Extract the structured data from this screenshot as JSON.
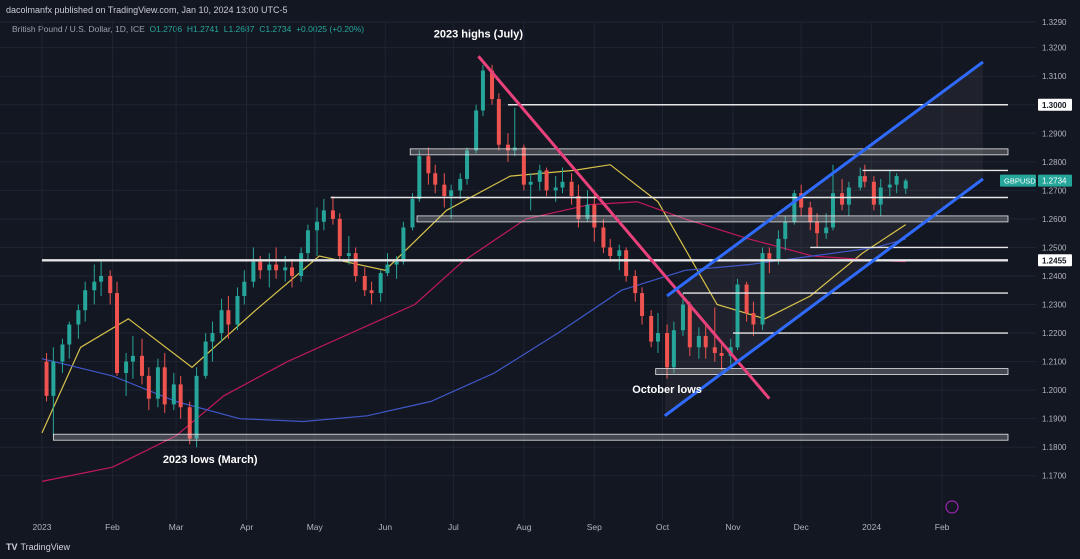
{
  "header": {
    "author": "dacolmanfx published on TradingView.com, Jan 10, 2024 13:00 UTC-5",
    "symbol_line": "British Pound / U.S. Dollar, 1D, ICE",
    "o": "O1.2706",
    "h": "H1.2741",
    "l": "L1.2687",
    "c": "C1.2734",
    "change": "+0.0025 (+0.20%)"
  },
  "footer": {
    "logo": "TV",
    "brand": "TradingView"
  },
  "colors": {
    "background": "#131722",
    "up": "#26a69a",
    "down": "#ef5350",
    "channel": "#2f6bff",
    "trendline": "#e8417b",
    "sma_fast": "#d8c24a",
    "sma_mid": "#c2185b",
    "sma_slow": "#3f57c9",
    "level": "#e6e6e6"
  },
  "chart_data": {
    "type": "candlestick",
    "title": "British Pound / U.S. Dollar, 1D, ICE",
    "ylim": [
      1.165,
      1.329
    ],
    "y_ticks": [
      "1.3290",
      "1.3200",
      "1.3100",
      "1.3000",
      "1.2900",
      "1.2800",
      "1.2700",
      "1.2600",
      "1.2500",
      "1.2400",
      "1.2300",
      "1.2200",
      "1.2100",
      "1.2000",
      "1.1900",
      "1.1800",
      "1.1700"
    ],
    "x_ticks": [
      "2023",
      "Feb",
      "Mar",
      "Apr",
      "May",
      "Jun",
      "Jul",
      "Aug",
      "Sep",
      "Oct",
      "Nov",
      "Dec",
      "2024",
      "Feb"
    ],
    "x_range": [
      "2023-01-01",
      "2024-03-01"
    ],
    "grid": true,
    "price_tags": [
      {
        "label": "GBPUSD",
        "value": "1.2734"
      },
      {
        "label": "",
        "value": "1.3000"
      },
      {
        "label": "",
        "value": "1.2455"
      }
    ],
    "annotations": [
      "2023 highs (July)",
      "2023 lows (March)",
      "October lows"
    ],
    "horizontal_levels": [
      {
        "value": 1.3,
        "from": "2023-07-25",
        "to": "2024-03-01"
      },
      {
        "value": 1.2835,
        "from": "2023-06-12",
        "to": "2024-03-01",
        "zone": true
      },
      {
        "value": 1.277,
        "from": "2023-12-28",
        "to": "2024-03-01"
      },
      {
        "value": 1.2675,
        "from": "2023-05-08",
        "to": "2024-03-01"
      },
      {
        "value": 1.26,
        "from": "2023-06-15",
        "to": "2024-03-01",
        "zone": true
      },
      {
        "value": 1.25,
        "from": "2023-12-05",
        "to": "2024-03-01"
      },
      {
        "value": 1.2455,
        "from": "2023-01-01",
        "to": "2024-03-01",
        "thick": true
      },
      {
        "value": 1.234,
        "from": "2023-10-10",
        "to": "2024-03-01"
      },
      {
        "value": 1.22,
        "from": "2023-11-01",
        "to": "2024-03-01"
      },
      {
        "value": 1.2065,
        "from": "2023-09-28",
        "to": "2024-03-01",
        "zone": true
      },
      {
        "value": 1.1835,
        "from": "2023-01-06",
        "to": "2024-03-01",
        "zone": true
      }
    ],
    "trendlines": [
      {
        "name": "descending",
        "points": [
          [
            "2023-07-12",
            1.317
          ],
          [
            "2023-11-17",
            1.197
          ]
        ]
      },
      {
        "name": "channel-upper",
        "points": [
          [
            "2023-10-03",
            1.233
          ],
          [
            "2024-02-19",
            1.315
          ]
        ]
      },
      {
        "name": "channel-lower",
        "points": [
          [
            "2023-10-02",
            1.191
          ],
          [
            "2024-02-19",
            1.274
          ]
        ]
      }
    ],
    "moving_averages": [
      {
        "name": "fast",
        "points": [
          [
            "2023-01-01",
            1.185
          ],
          [
            "2023-01-18",
            1.215
          ],
          [
            "2023-02-08",
            1.225
          ],
          [
            "2023-03-08",
            1.208
          ],
          [
            "2023-04-05",
            1.228
          ],
          [
            "2023-05-03",
            1.247
          ],
          [
            "2023-06-01",
            1.242
          ],
          [
            "2023-06-28",
            1.263
          ],
          [
            "2023-07-26",
            1.275
          ],
          [
            "2023-08-23",
            1.277
          ],
          [
            "2023-09-08",
            1.279
          ],
          [
            "2023-09-29",
            1.266
          ],
          [
            "2023-10-25",
            1.23
          ],
          [
            "2023-11-15",
            1.225
          ],
          [
            "2023-12-05",
            1.233
          ],
          [
            "2023-12-28",
            1.248
          ],
          [
            "2024-01-16",
            1.258
          ]
        ]
      },
      {
        "name": "mid",
        "points": [
          [
            "2023-01-01",
            1.168
          ],
          [
            "2023-02-01",
            1.173
          ],
          [
            "2023-03-01",
            1.184
          ],
          [
            "2023-03-22",
            1.198
          ],
          [
            "2023-04-19",
            1.21
          ],
          [
            "2023-05-17",
            1.22
          ],
          [
            "2023-06-14",
            1.23
          ],
          [
            "2023-07-05",
            1.245
          ],
          [
            "2023-08-02",
            1.26
          ],
          [
            "2023-08-30",
            1.265
          ],
          [
            "2023-09-20",
            1.266
          ],
          [
            "2023-10-11",
            1.26
          ],
          [
            "2023-11-08",
            1.253
          ],
          [
            "2023-12-06",
            1.247
          ],
          [
            "2024-01-02",
            1.2455
          ],
          [
            "2024-01-16",
            1.245
          ]
        ]
      },
      {
        "name": "slow",
        "points": [
          [
            "2023-01-01",
            1.211
          ],
          [
            "2023-02-01",
            1.205
          ],
          [
            "2023-03-01",
            1.196
          ],
          [
            "2023-03-29",
            1.19
          ],
          [
            "2023-04-26",
            1.189
          ],
          [
            "2023-05-24",
            1.191
          ],
          [
            "2023-06-21",
            1.196
          ],
          [
            "2023-07-19",
            1.206
          ],
          [
            "2023-08-16",
            1.22
          ],
          [
            "2023-09-13",
            1.235
          ],
          [
            "2023-10-11",
            1.242
          ],
          [
            "2023-11-08",
            1.244
          ],
          [
            "2023-12-06",
            1.247
          ],
          [
            "2024-01-03",
            1.25
          ],
          [
            "2024-01-16",
            1.253
          ]
        ]
      }
    ],
    "candles_ohlc": [
      [
        "2023-01-03",
        1.21,
        1.213,
        1.196,
        1.198
      ],
      [
        "2023-01-06",
        1.198,
        1.215,
        1.184,
        1.21
      ],
      [
        "2023-01-10",
        1.21,
        1.218,
        1.206,
        1.216
      ],
      [
        "2023-01-13",
        1.216,
        1.224,
        1.211,
        1.223
      ],
      [
        "2023-01-17",
        1.223,
        1.23,
        1.218,
        1.228
      ],
      [
        "2023-01-20",
        1.228,
        1.238,
        1.224,
        1.235
      ],
      [
        "2023-01-24",
        1.235,
        1.244,
        1.23,
        1.238
      ],
      [
        "2023-01-27",
        1.238,
        1.245,
        1.233,
        1.24
      ],
      [
        "2023-01-31",
        1.24,
        1.242,
        1.23,
        1.234
      ],
      [
        "2023-02-03",
        1.234,
        1.238,
        1.205,
        1.206
      ],
      [
        "2023-02-07",
        1.206,
        1.213,
        1.198,
        1.21
      ],
      [
        "2023-02-10",
        1.21,
        1.219,
        1.204,
        1.212
      ],
      [
        "2023-02-14",
        1.212,
        1.218,
        1.202,
        1.205
      ],
      [
        "2023-02-17",
        1.205,
        1.208,
        1.193,
        1.197
      ],
      [
        "2023-02-21",
        1.197,
        1.211,
        1.194,
        1.208
      ],
      [
        "2023-02-24",
        1.208,
        1.213,
        1.192,
        1.195
      ],
      [
        "2023-02-28",
        1.195,
        1.206,
        1.193,
        1.202
      ],
      [
        "2023-03-03",
        1.202,
        1.205,
        1.19,
        1.194
      ],
      [
        "2023-03-07",
        1.194,
        1.196,
        1.181,
        1.183
      ],
      [
        "2023-03-10",
        1.183,
        1.208,
        1.18,
        1.205
      ],
      [
        "2023-03-14",
        1.205,
        1.22,
        1.204,
        1.217
      ],
      [
        "2023-03-17",
        1.217,
        1.224,
        1.21,
        1.22
      ],
      [
        "2023-03-21",
        1.22,
        1.232,
        1.217,
        1.228
      ],
      [
        "2023-03-24",
        1.228,
        1.233,
        1.218,
        1.223
      ],
      [
        "2023-03-28",
        1.223,
        1.236,
        1.221,
        1.233
      ],
      [
        "2023-03-31",
        1.233,
        1.242,
        1.23,
        1.238
      ],
      [
        "2023-04-04",
        1.238,
        1.25,
        1.236,
        1.245
      ],
      [
        "2023-04-07",
        1.245,
        1.247,
        1.239,
        1.242
      ],
      [
        "2023-04-11",
        1.242,
        1.248,
        1.236,
        1.244
      ],
      [
        "2023-04-14",
        1.244,
        1.25,
        1.239,
        1.242
      ],
      [
        "2023-04-18",
        1.242,
        1.247,
        1.238,
        1.243
      ],
      [
        "2023-04-21",
        1.243,
        1.246,
        1.236,
        1.24
      ],
      [
        "2023-04-25",
        1.24,
        1.25,
        1.238,
        1.248
      ],
      [
        "2023-04-28",
        1.248,
        1.258,
        1.245,
        1.256
      ],
      [
        "2023-05-02",
        1.256,
        1.264,
        1.247,
        1.259
      ],
      [
        "2023-05-05",
        1.259,
        1.267,
        1.256,
        1.263
      ],
      [
        "2023-05-09",
        1.263,
        1.268,
        1.258,
        1.26
      ],
      [
        "2023-05-12",
        1.26,
        1.262,
        1.245,
        1.247
      ],
      [
        "2023-05-16",
        1.247,
        1.254,
        1.244,
        1.248
      ],
      [
        "2023-05-19",
        1.248,
        1.25,
        1.238,
        1.24
      ],
      [
        "2023-05-23",
        1.24,
        1.243,
        1.233,
        1.235
      ],
      [
        "2023-05-26",
        1.235,
        1.238,
        1.23,
        1.234
      ],
      [
        "2023-05-30",
        1.234,
        1.242,
        1.231,
        1.241
      ],
      [
        "2023-06-02",
        1.241,
        1.248,
        1.24,
        1.244
      ],
      [
        "2023-06-06",
        1.244,
        1.247,
        1.239,
        1.245
      ],
      [
        "2023-06-09",
        1.245,
        1.259,
        1.244,
        1.257
      ],
      [
        "2023-06-13",
        1.257,
        1.269,
        1.256,
        1.267
      ],
      [
        "2023-06-16",
        1.267,
        1.284,
        1.266,
        1.282
      ],
      [
        "2023-06-20",
        1.282,
        1.285,
        1.272,
        1.276
      ],
      [
        "2023-06-23",
        1.276,
        1.279,
        1.269,
        1.272
      ],
      [
        "2023-06-27",
        1.272,
        1.276,
        1.264,
        1.268
      ],
      [
        "2023-06-30",
        1.268,
        1.272,
        1.26,
        1.27
      ],
      [
        "2023-07-04",
        1.27,
        1.276,
        1.267,
        1.274
      ],
      [
        "2023-07-07",
        1.274,
        1.285,
        1.272,
        1.284
      ],
      [
        "2023-07-11",
        1.284,
        1.3,
        1.283,
        1.298
      ],
      [
        "2023-07-14",
        1.298,
        1.314,
        1.296,
        1.312
      ],
      [
        "2023-07-18",
        1.312,
        1.314,
        1.3,
        1.302
      ],
      [
        "2023-07-21",
        1.302,
        1.304,
        1.284,
        1.286
      ],
      [
        "2023-07-25",
        1.286,
        1.29,
        1.28,
        1.284
      ],
      [
        "2023-07-28",
        1.284,
        1.299,
        1.282,
        1.285
      ],
      [
        "2023-08-01",
        1.285,
        1.286,
        1.27,
        1.272
      ],
      [
        "2023-08-04",
        1.272,
        1.276,
        1.263,
        1.273
      ],
      [
        "2023-08-08",
        1.273,
        1.279,
        1.27,
        1.277
      ],
      [
        "2023-08-11",
        1.277,
        1.278,
        1.268,
        1.27
      ],
      [
        "2023-08-15",
        1.27,
        1.275,
        1.266,
        1.271
      ],
      [
        "2023-08-18",
        1.271,
        1.278,
        1.269,
        1.273
      ],
      [
        "2023-08-22",
        1.273,
        1.276,
        1.265,
        1.268
      ],
      [
        "2023-08-25",
        1.268,
        1.272,
        1.257,
        1.26
      ],
      [
        "2023-08-29",
        1.26,
        1.27,
        1.259,
        1.265
      ],
      [
        "2023-09-01",
        1.265,
        1.27,
        1.252,
        1.257
      ],
      [
        "2023-09-05",
        1.257,
        1.26,
        1.248,
        1.25
      ],
      [
        "2023-09-08",
        1.25,
        1.253,
        1.245,
        1.247
      ],
      [
        "2023-09-12",
        1.247,
        1.251,
        1.242,
        1.249
      ],
      [
        "2023-09-15",
        1.249,
        1.25,
        1.238,
        1.24
      ],
      [
        "2023-09-19",
        1.24,
        1.242,
        1.231,
        1.234
      ],
      [
        "2023-09-22",
        1.234,
        1.236,
        1.223,
        1.226
      ],
      [
        "2023-09-26",
        1.226,
        1.228,
        1.215,
        1.217
      ],
      [
        "2023-09-29",
        1.217,
        1.227,
        1.213,
        1.22
      ],
      [
        "2023-10-03",
        1.22,
        1.223,
        1.204,
        1.208
      ],
      [
        "2023-10-06",
        1.208,
        1.224,
        1.206,
        1.221
      ],
      [
        "2023-10-10",
        1.221,
        1.234,
        1.219,
        1.23
      ],
      [
        "2023-10-13",
        1.23,
        1.231,
        1.212,
        1.215
      ],
      [
        "2023-10-17",
        1.215,
        1.222,
        1.211,
        1.219
      ],
      [
        "2023-10-20",
        1.219,
        1.223,
        1.211,
        1.215
      ],
      [
        "2023-10-24",
        1.215,
        1.229,
        1.21,
        1.213
      ],
      [
        "2023-10-27",
        1.213,
        1.216,
        1.207,
        1.212
      ],
      [
        "2023-10-31",
        1.212,
        1.218,
        1.209,
        1.215
      ],
      [
        "2023-11-03",
        1.215,
        1.239,
        1.214,
        1.237
      ],
      [
        "2023-11-07",
        1.237,
        1.238,
        1.224,
        1.227
      ],
      [
        "2023-11-10",
        1.227,
        1.231,
        1.219,
        1.223
      ],
      [
        "2023-11-14",
        1.223,
        1.25,
        1.221,
        1.248
      ],
      [
        "2023-11-17",
        1.248,
        1.25,
        1.241,
        1.246
      ],
      [
        "2023-11-21",
        1.246,
        1.256,
        1.244,
        1.253
      ],
      [
        "2023-11-24",
        1.253,
        1.261,
        1.249,
        1.259
      ],
      [
        "2023-11-28",
        1.259,
        1.27,
        1.258,
        1.269
      ],
      [
        "2023-12-01",
        1.269,
        1.272,
        1.261,
        1.264
      ],
      [
        "2023-12-05",
        1.264,
        1.266,
        1.256,
        1.259
      ],
      [
        "2023-12-08",
        1.259,
        1.262,
        1.25,
        1.255
      ],
      [
        "2023-12-12",
        1.255,
        1.262,
        1.253,
        1.257
      ],
      [
        "2023-12-15",
        1.257,
        1.279,
        1.256,
        1.269
      ],
      [
        "2023-12-19",
        1.269,
        1.274,
        1.263,
        1.265
      ],
      [
        "2023-12-22",
        1.265,
        1.273,
        1.261,
        1.271
      ],
      [
        "2023-12-27",
        1.271,
        1.278,
        1.27,
        1.275
      ],
      [
        "2023-12-29",
        1.275,
        1.279,
        1.271,
        1.273
      ],
      [
        "2024-01-02",
        1.273,
        1.275,
        1.263,
        1.265
      ],
      [
        "2024-01-05",
        1.265,
        1.274,
        1.261,
        1.271
      ],
      [
        "2024-01-09",
        1.271,
        1.277,
        1.268,
        1.272
      ],
      [
        "2024-01-12",
        1.272,
        1.276,
        1.269,
        1.275
      ],
      [
        "2024-01-16",
        1.2706,
        1.2741,
        1.2687,
        1.2734
      ]
    ]
  }
}
